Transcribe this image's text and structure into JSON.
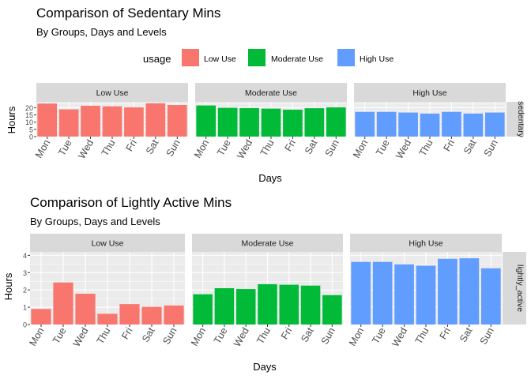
{
  "chart_data": [
    {
      "type": "bar",
      "title": "Comparison of Sedentary Mins",
      "subtitle": "By Groups, Days and Levels",
      "xlabel": "Days",
      "ylabel": "Hours",
      "row_strip": "sedentary",
      "categories": [
        "Mon",
        "Tue",
        "Wed",
        "Thu",
        "Fri",
        "Sat",
        "Sun"
      ],
      "ylim": [
        0,
        24
      ],
      "yticks": [
        0,
        5,
        10,
        15,
        20
      ],
      "series": [
        {
          "name": "Low Use",
          "color": "#F8766D",
          "values": [
            22.8,
            18.8,
            21.3,
            20.9,
            20.2,
            23.0,
            21.8
          ]
        },
        {
          "name": "Moderate Use",
          "color": "#00BA38",
          "values": [
            21.5,
            19.9,
            19.7,
            19.3,
            18.6,
            19.6,
            20.2
          ]
        },
        {
          "name": "High Use",
          "color": "#619CFF",
          "values": [
            17.1,
            17.1,
            16.6,
            15.9,
            17.1,
            15.9,
            16.6
          ]
        }
      ]
    },
    {
      "type": "bar",
      "title": "Comparison of Lightly Active Mins",
      "subtitle": "By Groups, Days and Levels",
      "xlabel": "Days",
      "ylabel": "Hours",
      "row_strip": "lightly_active",
      "categories": [
        "Mon",
        "Tue",
        "Wed",
        "Thu",
        "Fri",
        "Sat",
        "Sun"
      ],
      "ylim": [
        0,
        4.2
      ],
      "yticks": [
        0,
        1,
        2,
        3,
        4
      ],
      "series": [
        {
          "name": "Low Use",
          "color": "#F8766D",
          "values": [
            0.9,
            2.43,
            1.78,
            0.62,
            1.18,
            1.02,
            1.1
          ]
        },
        {
          "name": "Moderate Use",
          "color": "#00BA38",
          "values": [
            1.75,
            2.1,
            2.05,
            2.33,
            2.3,
            2.25,
            1.7
          ]
        },
        {
          "name": "High Use",
          "color": "#619CFF",
          "values": [
            3.62,
            3.62,
            3.48,
            3.4,
            3.8,
            3.83,
            3.25
          ]
        }
      ]
    }
  ],
  "legend": {
    "title": "usage",
    "items": [
      {
        "label": "Low Use",
        "color": "#F8766D"
      },
      {
        "label": "Moderate Use",
        "color": "#00BA38"
      },
      {
        "label": "High Use",
        "color": "#619CFF"
      }
    ]
  },
  "colors": {
    "panel_bg": "#EBEBEB",
    "strip_bg": "#D9D9D9",
    "grid": "#FFFFFF"
  }
}
